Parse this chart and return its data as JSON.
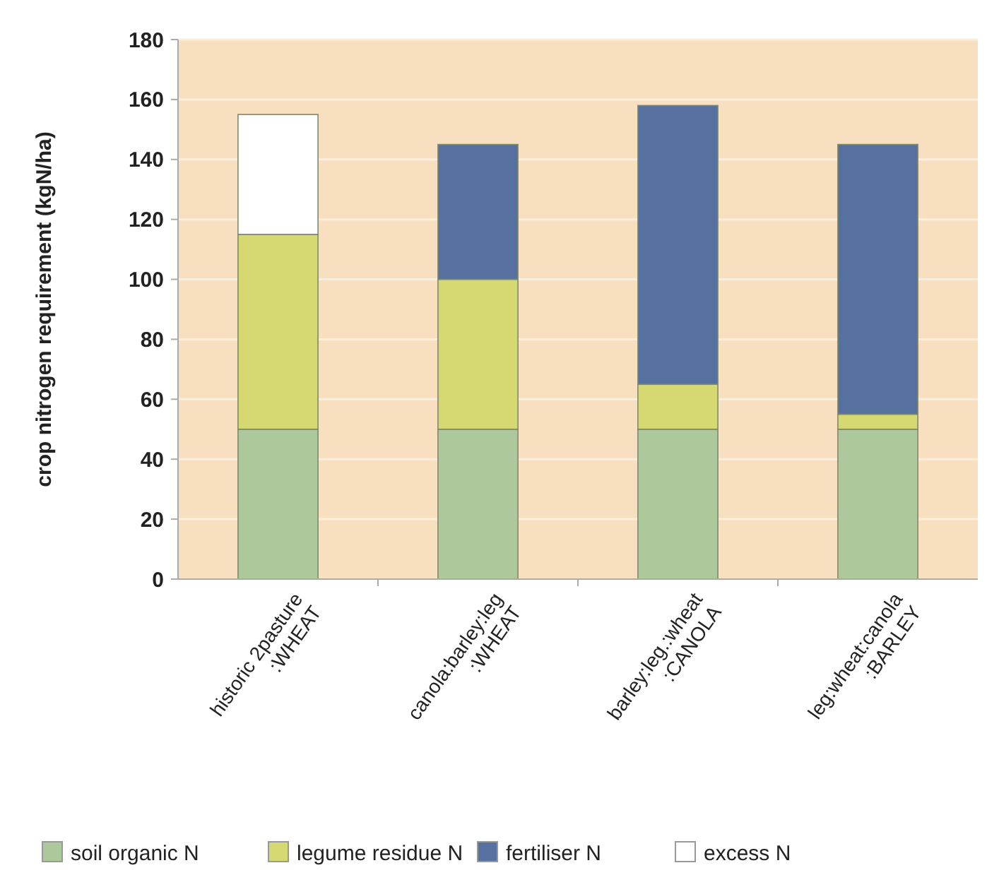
{
  "chart_data": {
    "type": "bar",
    "stacked": true,
    "ylabel": "crop nitrogen requirement (kgN/ha)",
    "categories": [
      "historic 2pasture\n:WHEAT",
      "canola:barley:leg\n:WHEAT",
      "barley:leg.:wheat\n:CANOLA",
      "leg:wheat:canola\n:BARLEY"
    ],
    "series": [
      {
        "name": "soil organic N",
        "color": "#adc89a",
        "values": [
          50,
          50,
          50,
          50
        ]
      },
      {
        "name": "legume residue N",
        "color": "#d6d872",
        "values": [
          65,
          50,
          15,
          5
        ]
      },
      {
        "name": "fertiliser N",
        "color": "#56709f",
        "values": [
          0,
          45,
          93,
          90
        ]
      },
      {
        "name": "excess N",
        "color": "#ffffff",
        "values": [
          40,
          0,
          0,
          0
        ]
      }
    ],
    "ylim": [
      0,
      180
    ],
    "yticks": [
      0,
      20,
      40,
      60,
      80,
      100,
      120,
      140,
      160,
      180
    ],
    "grid": "y",
    "legend": "bottom"
  }
}
